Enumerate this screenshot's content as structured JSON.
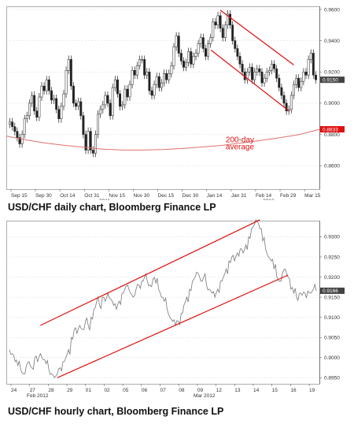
{
  "captions": {
    "daily": "USD/CHF daily chart, Bloomberg Finance LP",
    "hourly": "USD/CHF hourly chart, Bloomberg Finance LP"
  },
  "colors": {
    "price": "#222222",
    "trend": "#e01010",
    "ma": "#e07070",
    "grid": "#d8d8d8",
    "label_bg": "#e01010"
  },
  "chart_data": [
    {
      "type": "candlestick",
      "title": "",
      "x_tick_labels": [
        "Sep 15",
        "Sep 30",
        "Oct 14",
        "Oct 31",
        "Nov 15",
        "Nov 30",
        "Dec 15",
        "Dec 30",
        "Jan 14",
        "Jan 31",
        "Feb 14",
        "Feb 29",
        "Mar 15"
      ],
      "x_secondary_labels": [
        "2011",
        "2012"
      ],
      "y_tick_labels": [
        "0.9600",
        "0.9400",
        "0.9200",
        "0.9000",
        "0.8800",
        "0.8600"
      ],
      "ylim": [
        0.845,
        0.962
      ],
      "last_value_label": "0.9150",
      "ma_value_label": "0.8833",
      "close": [
        0.888,
        0.885,
        0.882,
        0.878,
        0.874,
        0.88,
        0.89,
        0.892,
        0.9,
        0.905,
        0.895,
        0.891,
        0.904,
        0.911,
        0.908,
        0.915,
        0.908,
        0.902,
        0.903,
        0.896,
        0.89,
        0.898,
        0.906,
        0.921,
        0.928,
        0.911,
        0.9,
        0.898,
        0.901,
        0.892,
        0.88,
        0.87,
        0.882,
        0.87,
        0.868,
        0.88,
        0.893,
        0.896,
        0.899,
        0.905,
        0.9,
        0.892,
        0.91,
        0.915,
        0.906,
        0.898,
        0.899,
        0.909,
        0.904,
        0.912,
        0.921,
        0.918,
        0.924,
        0.928,
        0.928,
        0.918,
        0.92,
        0.908,
        0.905,
        0.912,
        0.917,
        0.91,
        0.913,
        0.919,
        0.915,
        0.919,
        0.924,
        0.936,
        0.943,
        0.932,
        0.927,
        0.923,
        0.926,
        0.933,
        0.925,
        0.93,
        0.932,
        0.938,
        0.942,
        0.935,
        0.93,
        0.938,
        0.942,
        0.952,
        0.95,
        0.956,
        0.948,
        0.942,
        0.95,
        0.957,
        0.95,
        0.94,
        0.935,
        0.93,
        0.925,
        0.92,
        0.915,
        0.92,
        0.923,
        0.915,
        0.92,
        0.922,
        0.92,
        0.913,
        0.916,
        0.92,
        0.921,
        0.925,
        0.922,
        0.916,
        0.91,
        0.905,
        0.9,
        0.895,
        0.896,
        0.905,
        0.912,
        0.916,
        0.91,
        0.914,
        0.92,
        0.918,
        0.928,
        0.932,
        0.918,
        0.915
      ],
      "ma_200": [
        0.879,
        0.8765,
        0.8745,
        0.873,
        0.8718,
        0.8705,
        0.87,
        0.87,
        0.8703,
        0.871,
        0.872,
        0.873,
        0.8745,
        0.8762,
        0.878,
        0.88,
        0.8833
      ],
      "trend_channel": "down",
      "annotations": [
        "200-day",
        "average"
      ]
    },
    {
      "type": "line",
      "title": "",
      "x_tick_labels": [
        "24",
        "27",
        "28",
        "29",
        "01",
        "02",
        "05",
        "06",
        "07",
        "08",
        "09",
        "12",
        "13",
        "14",
        "15",
        "16",
        "19"
      ],
      "x_secondary_labels": [
        "Feb 2012",
        "Mar 2012"
      ],
      "y_tick_labels": [
        "0.9300",
        "0.9250",
        "0.9200",
        "0.9150",
        "0.9100",
        "0.9050",
        "0.9000",
        "0.8950"
      ],
      "ylim": [
        0.8935,
        0.934
      ],
      "last_value_label": "0.9166",
      "values": [
        0.902,
        0.901,
        0.899,
        0.898,
        0.897,
        0.896,
        0.898,
        0.899,
        0.8975,
        0.9,
        0.899,
        0.901,
        0.8995,
        0.8985,
        0.897,
        0.896,
        0.895,
        0.896,
        0.8975,
        0.899,
        0.9,
        0.902,
        0.905,
        0.907,
        0.906,
        0.908,
        0.907,
        0.909,
        0.908,
        0.91,
        0.912,
        0.914,
        0.913,
        0.915,
        0.914,
        0.916,
        0.9145,
        0.913,
        0.912,
        0.914,
        0.916,
        0.917,
        0.918,
        0.916,
        0.915,
        0.917,
        0.918,
        0.919,
        0.92,
        0.919,
        0.918,
        0.9195,
        0.9185,
        0.917,
        0.915,
        0.914,
        0.912,
        0.91,
        0.909,
        0.908,
        0.909,
        0.911,
        0.913,
        0.915,
        0.917,
        0.919,
        0.92,
        0.921,
        0.919,
        0.92,
        0.918,
        0.917,
        0.916,
        0.915,
        0.917,
        0.919,
        0.92,
        0.922,
        0.924,
        0.925,
        0.924,
        0.926,
        0.927,
        0.926,
        0.928,
        0.93,
        0.932,
        0.933,
        0.934,
        0.932,
        0.929,
        0.927,
        0.925,
        0.924,
        0.922,
        0.92,
        0.919,
        0.921,
        0.922,
        0.92,
        0.917,
        0.916,
        0.915,
        0.916,
        0.9155,
        0.916,
        0.9165,
        0.916,
        0.917,
        0.9166
      ],
      "trend_channel": "up"
    }
  ]
}
